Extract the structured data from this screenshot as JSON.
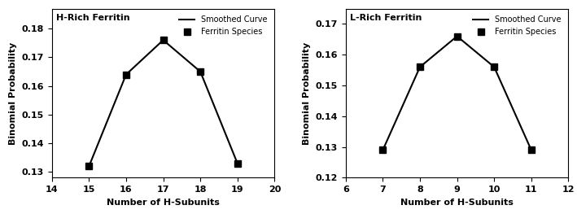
{
  "chart_data": [
    {
      "type": "scatter",
      "title": "H-Rich Ferritin",
      "x_label": "Number of H-Subunits",
      "y_label": "Binomial Probability",
      "x": [
        15,
        16,
        17,
        18,
        19
      ],
      "series": [
        {
          "name": "Smoothed Curve",
          "type": "line",
          "color": "#000000",
          "line_style": "solid",
          "values": [
            0.132,
            0.164,
            0.176,
            0.165,
            0.133
          ]
        },
        {
          "name": "Ferritin Species",
          "type": "scatter",
          "color": "#000000",
          "marker": "square",
          "values": [
            0.132,
            0.164,
            0.176,
            0.165,
            0.133
          ]
        }
      ],
      "xlim": [
        14,
        20
      ],
      "xticks": [
        14,
        15,
        16,
        17,
        18,
        19,
        20
      ],
      "ylim": [
        0.128,
        0.187
      ],
      "yticks": [
        0.13,
        0.14,
        0.15,
        0.16,
        0.17,
        0.18
      ],
      "legend": "upper right"
    },
    {
      "type": "scatter",
      "title": "L-Rich Ferritin",
      "x_label": "Number of H-Subunits",
      "y_label": "Binomial Probability",
      "x": [
        7,
        8,
        9,
        10,
        11
      ],
      "series": [
        {
          "name": "Smoothed Curve",
          "type": "line",
          "color": "#000000",
          "line_style": "solid",
          "values": [
            0.129,
            0.156,
            0.166,
            0.156,
            0.129
          ]
        },
        {
          "name": "Ferritin Species",
          "type": "scatter",
          "color": "#000000",
          "marker": "square",
          "values": [
            0.129,
            0.156,
            0.166,
            0.156,
            0.129
          ]
        }
      ],
      "xlim": [
        6,
        12
      ],
      "xticks": [
        6,
        7,
        8,
        9,
        10,
        11,
        12
      ],
      "ylim": [
        0.12,
        0.175
      ],
      "yticks": [
        0.12,
        0.13,
        0.14,
        0.15,
        0.16,
        0.17
      ],
      "legend": "upper right"
    }
  ]
}
